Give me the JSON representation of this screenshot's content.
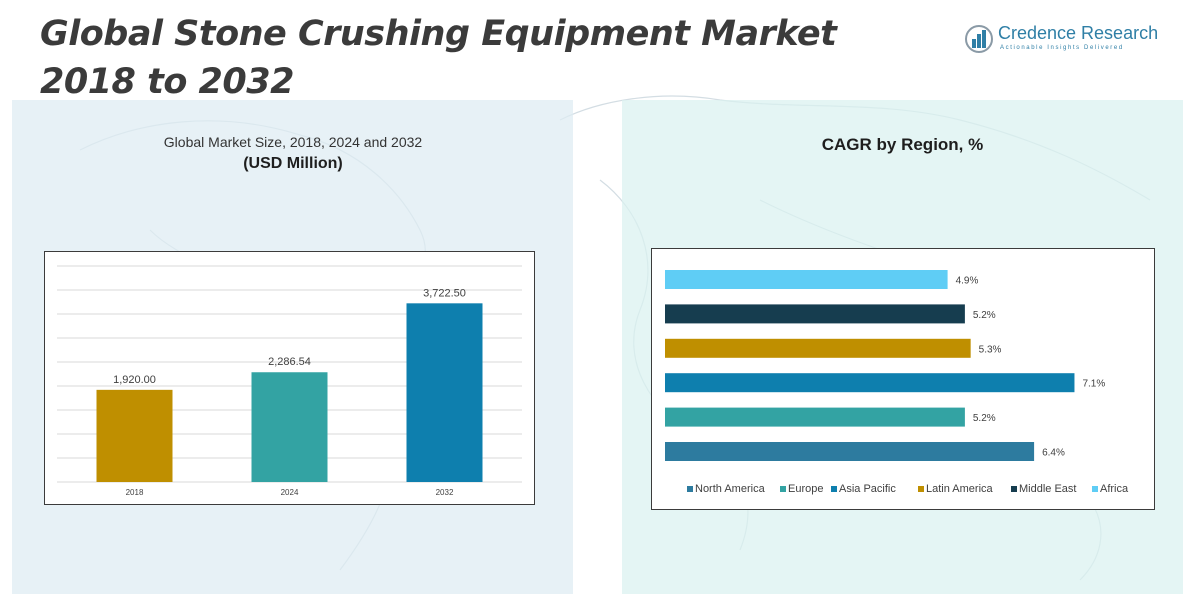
{
  "header": {
    "title": "Global Stone Crushing Equipment Market 2018 to 2032"
  },
  "logo": {
    "name": "Credence Research",
    "tagline": "Actionable Insights Delivered",
    "icon": "bar-chart-logo-icon"
  },
  "left_panel": {
    "title": "Global Market Size, 2018, 2024 and 2032",
    "subtitle": "(USD Million)"
  },
  "right_panel": {
    "title": "CAGR by Region, %"
  },
  "chart_data": [
    {
      "type": "bar",
      "title": "Global Market Size, 2018, 2024 and 2032",
      "subtitle": "(USD Million)",
      "categories": [
        "2018",
        "2024",
        "2032"
      ],
      "values": [
        1920.0,
        2286.54,
        3722.5
      ],
      "data_labels": [
        "1,920.00",
        "2,286.54",
        "3,722.50"
      ],
      "colors": [
        "#bf8f00",
        "#33a3a3",
        "#0e7fae"
      ],
      "ylim": [
        0,
        4500
      ],
      "grid": true,
      "legend": "none"
    },
    {
      "type": "bar",
      "orientation": "horizontal",
      "title": "CAGR by Region, %",
      "categories": [
        "Africa",
        "Middle East",
        "Latin America",
        "Asia Pacific",
        "Europe",
        "North America"
      ],
      "values": [
        4.9,
        5.2,
        5.3,
        7.1,
        5.2,
        6.4
      ],
      "data_labels": [
        "4.9%",
        "5.2%",
        "5.3%",
        "7.1%",
        "5.2%",
        "6.4%"
      ],
      "colors": [
        "#5fcdf5",
        "#163d4f",
        "#bf8f00",
        "#0e7fae",
        "#33a3a3",
        "#2d7b9f"
      ],
      "xlim": [
        0,
        7.3
      ],
      "grid": false,
      "legend": "bottom",
      "legend_entries": [
        "North America",
        "Europe",
        "Asia Pacific",
        "Latin America",
        "Middle East",
        "Africa"
      ],
      "legend_colors": [
        "#2d7b9f",
        "#33a3a3",
        "#0e7fae",
        "#bf8f00",
        "#163d4f",
        "#5fcdf5"
      ]
    }
  ]
}
